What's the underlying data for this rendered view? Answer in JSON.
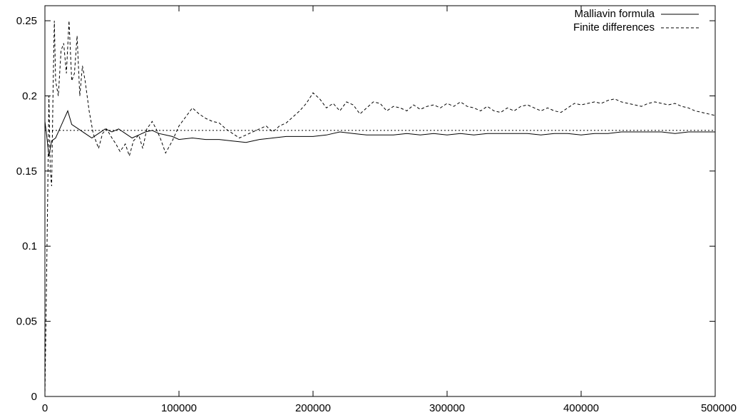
{
  "chart_data": {
    "type": "line",
    "title": "",
    "xlabel": "",
    "ylabel": "",
    "xlim": [
      0,
      500000
    ],
    "ylim": [
      0,
      0.26
    ],
    "x_ticks": [
      {
        "value": 0,
        "label": "0"
      },
      {
        "value": 100000,
        "label": "100000"
      },
      {
        "value": 200000,
        "label": "200000"
      },
      {
        "value": 300000,
        "label": "300000"
      },
      {
        "value": 400000,
        "label": "400000"
      },
      {
        "value": 500000,
        "label": "500000"
      }
    ],
    "y_ticks": [
      {
        "value": 0,
        "label": "0"
      },
      {
        "value": 0.05,
        "label": "0.05"
      },
      {
        "value": 0.1,
        "label": "0.1"
      },
      {
        "value": 0.15,
        "label": "0.15"
      },
      {
        "value": 0.2,
        "label": "0.2"
      },
      {
        "value": 0.25,
        "label": "0.25"
      }
    ],
    "grid": false,
    "legend_position": "top-right",
    "series": [
      {
        "name": "Malliavin formula",
        "style": "solid",
        "x": [
          0,
          1000,
          3000,
          5000,
          8000,
          11000,
          14000,
          17000,
          20000,
          25000,
          30000,
          35000,
          40000,
          45000,
          50000,
          55000,
          60000,
          65000,
          70000,
          75000,
          80000,
          85000,
          90000,
          95000,
          100000,
          110000,
          120000,
          130000,
          140000,
          150000,
          160000,
          170000,
          180000,
          190000,
          200000,
          210000,
          220000,
          230000,
          240000,
          250000,
          260000,
          270000,
          280000,
          290000,
          300000,
          310000,
          320000,
          330000,
          340000,
          350000,
          360000,
          370000,
          380000,
          390000,
          400000,
          410000,
          420000,
          430000,
          440000,
          450000,
          460000,
          470000,
          480000,
          490000,
          500000
        ],
        "y": [
          0.183,
          0.176,
          0.16,
          0.17,
          0.172,
          0.178,
          0.184,
          0.19,
          0.181,
          0.178,
          0.175,
          0.172,
          0.175,
          0.178,
          0.176,
          0.178,
          0.175,
          0.172,
          0.174,
          0.176,
          0.177,
          0.175,
          0.174,
          0.173,
          0.171,
          0.172,
          0.171,
          0.171,
          0.17,
          0.169,
          0.171,
          0.172,
          0.173,
          0.173,
          0.173,
          0.174,
          0.176,
          0.175,
          0.174,
          0.174,
          0.174,
          0.175,
          0.174,
          0.175,
          0.174,
          0.175,
          0.174,
          0.175,
          0.175,
          0.175,
          0.175,
          0.174,
          0.175,
          0.175,
          0.174,
          0.175,
          0.175,
          0.176,
          0.176,
          0.176,
          0.176,
          0.175,
          0.176,
          0.176,
          0.176
        ]
      },
      {
        "name": "Finite differences",
        "style": "dashed",
        "x": [
          0,
          2000,
          3000,
          4000,
          5000,
          6000,
          7000,
          8000,
          10000,
          12000,
          14000,
          16000,
          18000,
          20000,
          22000,
          24000,
          26000,
          28000,
          30000,
          33000,
          36000,
          40000,
          43000,
          46000,
          50000,
          53000,
          56000,
          60000,
          63000,
          66000,
          70000,
          73000,
          76000,
          80000,
          83000,
          86000,
          90000,
          95000,
          100000,
          105000,
          110000,
          115000,
          120000,
          125000,
          130000,
          135000,
          140000,
          145000,
          150000,
          155000,
          160000,
          165000,
          170000,
          175000,
          180000,
          185000,
          190000,
          195000,
          200000,
          205000,
          210000,
          215000,
          220000,
          225000,
          230000,
          235000,
          240000,
          245000,
          250000,
          255000,
          260000,
          265000,
          270000,
          275000,
          280000,
          285000,
          290000,
          295000,
          300000,
          305000,
          310000,
          315000,
          320000,
          325000,
          330000,
          335000,
          340000,
          345000,
          350000,
          355000,
          360000,
          365000,
          370000,
          375000,
          380000,
          385000,
          390000,
          395000,
          400000,
          405000,
          410000,
          415000,
          420000,
          425000,
          430000,
          435000,
          440000,
          445000,
          450000,
          455000,
          460000,
          465000,
          470000,
          475000,
          480000,
          485000,
          490000,
          495000,
          500000
        ],
        "y": [
          0.0,
          0.13,
          0.2,
          0.15,
          0.14,
          0.2,
          0.25,
          0.21,
          0.2,
          0.23,
          0.235,
          0.215,
          0.25,
          0.21,
          0.215,
          0.24,
          0.2,
          0.22,
          0.21,
          0.19,
          0.175,
          0.165,
          0.175,
          0.178,
          0.172,
          0.168,
          0.163,
          0.168,
          0.16,
          0.17,
          0.174,
          0.165,
          0.178,
          0.183,
          0.178,
          0.172,
          0.162,
          0.17,
          0.18,
          0.186,
          0.192,
          0.188,
          0.185,
          0.183,
          0.182,
          0.178,
          0.175,
          0.172,
          0.174,
          0.176,
          0.178,
          0.18,
          0.176,
          0.18,
          0.182,
          0.186,
          0.19,
          0.195,
          0.202,
          0.198,
          0.192,
          0.195,
          0.19,
          0.196,
          0.194,
          0.188,
          0.192,
          0.196,
          0.195,
          0.19,
          0.193,
          0.192,
          0.19,
          0.194,
          0.191,
          0.193,
          0.194,
          0.192,
          0.195,
          0.193,
          0.196,
          0.193,
          0.192,
          0.19,
          0.193,
          0.19,
          0.189,
          0.192,
          0.19,
          0.193,
          0.194,
          0.192,
          0.19,
          0.192,
          0.19,
          0.189,
          0.192,
          0.195,
          0.194,
          0.195,
          0.196,
          0.195,
          0.197,
          0.198,
          0.196,
          0.195,
          0.194,
          0.193,
          0.195,
          0.196,
          0.195,
          0.194,
          0.195,
          0.193,
          0.192,
          0.19,
          0.189,
          0.188,
          0.187
        ]
      },
      {
        "name": "",
        "style": "dotted",
        "x": [
          0,
          500000
        ],
        "y": [
          0.177,
          0.177
        ]
      }
    ]
  }
}
